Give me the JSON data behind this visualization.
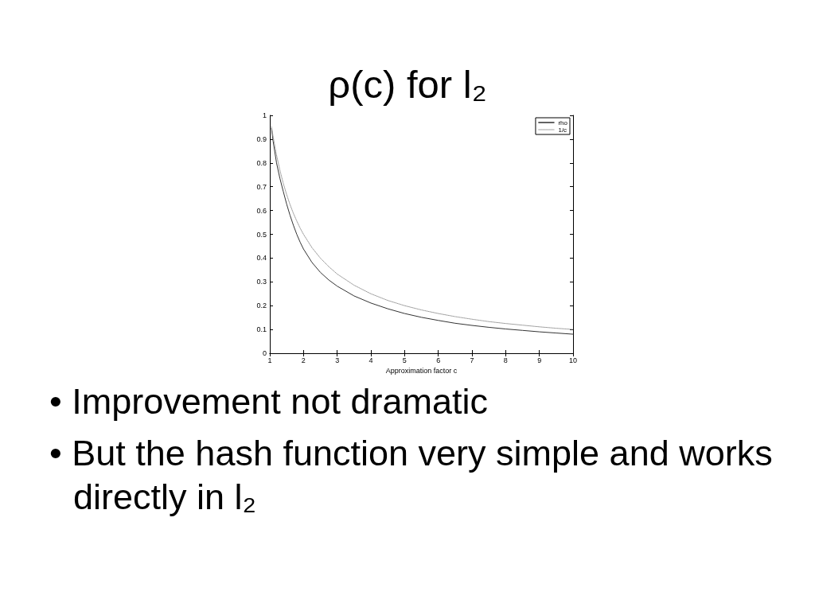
{
  "chart_data": {
    "type": "line",
    "title": "ρ(c) for l₂",
    "xlabel": "Approximation factor c",
    "x": [
      1.05,
      1.1,
      1.2,
      1.3,
      1.4,
      1.5,
      1.6,
      1.7,
      1.8,
      1.9,
      2,
      2.25,
      2.5,
      2.75,
      3,
      3.5,
      4,
      4.5,
      5,
      5.5,
      6,
      6.5,
      7,
      7.5,
      8,
      8.5,
      9,
      9.5,
      10
    ],
    "series": [
      {
        "name": "rho",
        "color": "#333333",
        "line_style": "solid",
        "values": [
          0.945,
          0.89,
          0.8,
          0.735,
          0.68,
          0.627,
          0.58,
          0.538,
          0.5,
          0.467,
          0.438,
          0.382,
          0.34,
          0.308,
          0.282,
          0.241,
          0.211,
          0.187,
          0.167,
          0.151,
          0.138,
          0.126,
          0.117,
          0.109,
          0.102,
          0.096,
          0.09,
          0.085,
          0.08
        ]
      },
      {
        "name": "1/c",
        "color": "#999999",
        "line_style": "dotted",
        "values": [
          0.952,
          0.909,
          0.833,
          0.769,
          0.714,
          0.667,
          0.625,
          0.588,
          0.556,
          0.526,
          0.5,
          0.444,
          0.4,
          0.364,
          0.333,
          0.286,
          0.25,
          0.222,
          0.2,
          0.182,
          0.167,
          0.154,
          0.143,
          0.133,
          0.125,
          0.118,
          0.111,
          0.105,
          0.1
        ]
      }
    ],
    "xlim": [
      1,
      10
    ],
    "xticks": [
      1,
      2,
      3,
      4,
      5,
      6,
      7,
      8,
      9,
      10
    ],
    "ylim": [
      0,
      1
    ],
    "yticks": [
      0,
      0.1,
      0.2,
      0.3,
      0.4,
      0.5,
      0.6,
      0.7,
      0.8,
      0.9,
      1
    ],
    "legend": "top right",
    "annotations": [
      "• Improvement not dramatic",
      "• But the hash function very simple and works directly in l₂"
    ]
  }
}
